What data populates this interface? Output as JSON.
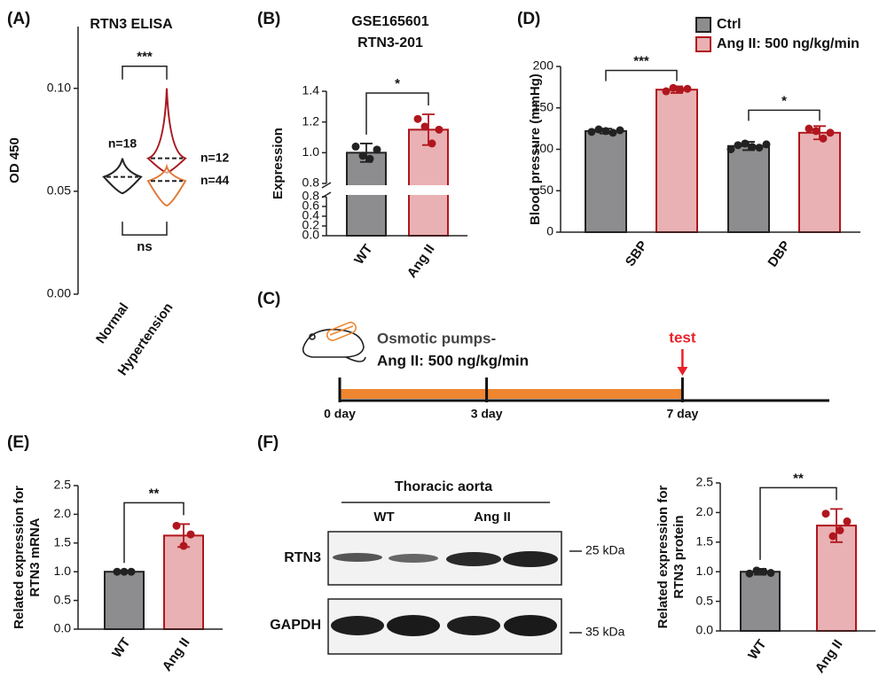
{
  "chart_data": [
    {
      "type": "violin",
      "panel": "(A)",
      "title": "RTN3 ELISA",
      "ylabel": [
        "OD 450"
      ],
      "categories": [
        "Normal",
        "Hypertension"
      ],
      "ylim": [
        0,
        0.13
      ],
      "yticks": [
        {
          "value": 0,
          "label": "0.00"
        },
        {
          "value": 0.05,
          "label": "0.05"
        },
        {
          "value": 0.1,
          "label": "0.10"
        }
      ],
      "violins": [
        {
          "category": 0,
          "min": 0.049,
          "median": 0.057,
          "max": 0.066,
          "color": "#222222",
          "count_label": "n=18"
        },
        {
          "category": 1,
          "min": 0.059,
          "median": 0.066,
          "max": 0.1,
          "color": "#a8191f",
          "count_label": "n=12"
        },
        {
          "category": 1,
          "min": 0.043,
          "median": 0.055,
          "max": 0.062,
          "color": "#e07b39",
          "count_label": "n=44"
        }
      ],
      "comparisons": [
        {
          "label": "***",
          "side": "top"
        },
        {
          "label": "ns",
          "side": "bottom"
        }
      ]
    },
    {
      "type": "bar",
      "panel": "(B)",
      "title": "GSE165601",
      "subtitle": "RTN3-201",
      "ylabel": [
        "Expression"
      ],
      "categories": [
        "WT",
        "Ang II"
      ],
      "values": [
        1.0,
        1.15
      ],
      "errors": [
        0.06,
        0.1
      ],
      "points": [
        [
          1.04,
          0.98,
          0.96,
          1.02
        ],
        [
          1.22,
          1.17,
          1.06,
          1.15
        ]
      ],
      "colors": [
        "#8d8d90",
        "#e9b1b3"
      ],
      "edge_colors": [
        "#222222",
        "#b0161e"
      ],
      "segments": [
        {
          "ylim": [
            0,
            0.8
          ],
          "yticks": [
            {
              "value": 0,
              "label": "0.0"
            },
            0.2,
            0.4,
            0.6,
            0.8
          ]
        },
        {
          "ylim": [
            0.8,
            1.4
          ],
          "yticks": [
            0.8,
            {
              "value": 1,
              "label": "1.0"
            },
            1.2,
            1.4
          ]
        }
      ],
      "comparisons": [
        {
          "label": "*"
        }
      ]
    },
    {
      "type": "bar",
      "panel": "(D)",
      "ylabel": [
        "Blood pressure (mmHg)"
      ],
      "categories": [
        "SBP",
        "DBP"
      ],
      "series": [
        {
          "name": "Ctrl",
          "color": "#8d8d90",
          "edge_color": "#222222",
          "values": [
            122,
            104
          ],
          "errors": [
            3,
            5
          ],
          "points": [
            [
              121,
              124,
              122,
              120,
              123
            ],
            [
              100,
              105,
              107,
              103,
              102,
              106
            ]
          ]
        },
        {
          "name": "Ang II: 500 ng/kg/min",
          "color": "#e9b1b3",
          "edge_color": "#b0161e",
          "values": [
            172,
            120
          ],
          "errors": [
            4,
            8
          ],
          "points": [
            [
              170,
              174,
              172,
              173
            ],
            [
              125,
              122,
              113,
              120
            ]
          ]
        }
      ],
      "ylim": [
        0,
        200
      ],
      "yticks": [
        0,
        50,
        100,
        150,
        200
      ],
      "comparisons": [
        {
          "label": "***",
          "category": 0
        },
        {
          "label": "*",
          "category": 1
        }
      ]
    },
    {
      "type": "timeline",
      "panel": "(C)",
      "labels": [
        "Osmotic pumps-",
        "Ang II: 500 ng/kg/min"
      ],
      "xlim": [
        0,
        10
      ],
      "xticks": [
        {
          "value": 0,
          "label": "0 day"
        },
        {
          "value": 3,
          "label": "3 day"
        },
        {
          "value": 7,
          "label": "7 day"
        }
      ],
      "infusion": [
        0,
        7
      ],
      "infusion_color": "#ef8630",
      "event": {
        "label": "test",
        "x": 7,
        "color": "#e8202a"
      }
    },
    {
      "type": "bar",
      "panel": "(E)",
      "ylabel": [
        "Related expression for",
        "RTN3 mRNA"
      ],
      "categories": [
        "WT",
        "Ang II"
      ],
      "values": [
        1.0,
        1.63
      ],
      "errors": [
        0,
        0.2
      ],
      "points": [
        [
          1,
          1,
          1
        ],
        [
          1.8,
          1.45,
          1.65
        ]
      ],
      "colors": [
        "#8d8d90",
        "#e9b1b3"
      ],
      "edge_colors": [
        "#222222",
        "#b0161e"
      ],
      "ylim": [
        0,
        2.5
      ],
      "yticks": [
        {
          "value": 0,
          "label": "0.0"
        },
        0.5,
        {
          "value": 1,
          "label": "1.0"
        },
        1.5,
        {
          "value": 2,
          "label": "2.0"
        },
        2.5
      ],
      "comparisons": [
        {
          "label": "**"
        }
      ]
    },
    {
      "type": "bar",
      "ylabel": [
        "Related expression for",
        "RTN3 protein"
      ],
      "categories": [
        "WT",
        "Ang II"
      ],
      "values": [
        1.0,
        1.78
      ],
      "errors": [
        0.05,
        0.28
      ],
      "points": [
        [
          0.97,
          1.02,
          1.0,
          0.98
        ],
        [
          1.98,
          1.6,
          1.7,
          1.85
        ]
      ],
      "colors": [
        "#8d8d90",
        "#e9b1b3"
      ],
      "edge_colors": [
        "#222222",
        "#b0161e"
      ],
      "ylim": [
        0,
        2.5
      ],
      "yticks": [
        {
          "value": 0,
          "label": "0.0"
        },
        0.5,
        {
          "value": 1,
          "label": "1.0"
        },
        1.5,
        {
          "value": 2,
          "label": "2.0"
        },
        2.5
      ],
      "comparisons": [
        {
          "label": "**"
        }
      ]
    }
  ],
  "blot": {
    "panel": "(F)",
    "title": "Thoracic aorta",
    "groups": [
      "WT",
      "Ang II"
    ],
    "rows": [
      {
        "label": "RTN3",
        "marker": "25 kDa"
      },
      {
        "label": "GAPDH",
        "marker": "35 kDa"
      }
    ]
  }
}
